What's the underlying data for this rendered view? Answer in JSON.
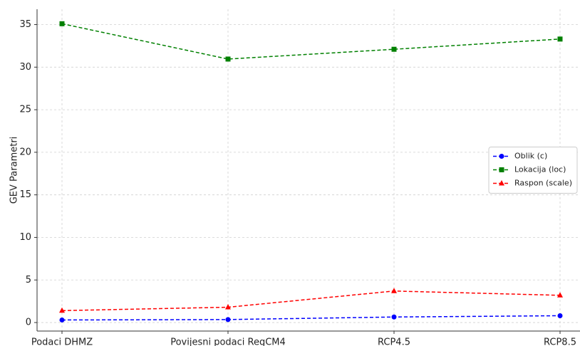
{
  "chart_data": {
    "type": "line",
    "y_label": "GEV Parametri",
    "categories": [
      "Podaci DHMZ",
      "Povijesni podaci RegCM4",
      "RCP4.5",
      "RCP8.5"
    ],
    "series": [
      {
        "name": "Oblik (c)",
        "color": "#0000ff",
        "marker": "circle",
        "values": [
          0.3,
          0.35,
          0.65,
          0.8
        ]
      },
      {
        "name": "Lokacija (loc)",
        "color": "#008000",
        "marker": "square",
        "values": [
          35.1,
          30.95,
          32.1,
          33.3
        ]
      },
      {
        "name": "Raspon (scale)",
        "color": "#ff0000",
        "marker": "triangle",
        "values": [
          1.4,
          1.8,
          3.7,
          3.2
        ]
      }
    ],
    "ylim": [
      -1,
      36.8
    ],
    "yticks": [
      0,
      5,
      10,
      15,
      20,
      25,
      30,
      35
    ],
    "grid": true,
    "legend": "center right"
  }
}
